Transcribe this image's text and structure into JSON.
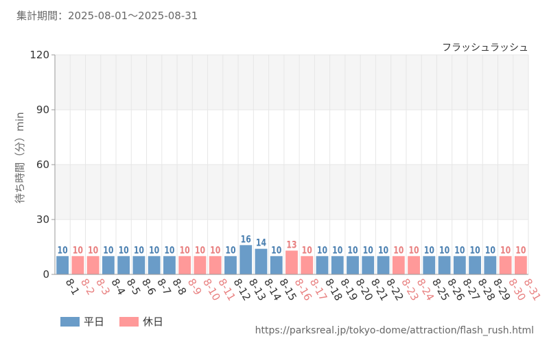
{
  "period_label": "集計期間：2025-08-01～2025-08-31",
  "source_url": "https://parksreal.jp/tokyo-dome/attraction/flash_rush.html",
  "colors": {
    "weekday": "#6a9cc8",
    "holiday": "#ff9999",
    "weekday_text": "#4a7fb0",
    "holiday_text": "#e87f7f"
  },
  "chart_data": {
    "type": "bar",
    "title": "フラッシュラッシュ",
    "ylabel": "待ち時間（分）min",
    "ylim": [
      0,
      120
    ],
    "yticks": [
      0,
      30,
      60,
      90,
      120
    ],
    "grid": true,
    "legend_position": "bottom-left",
    "categories": [
      "8-1",
      "8-2",
      "8-3",
      "8-4",
      "8-5",
      "8-6",
      "8-7",
      "8-8",
      "8-9",
      "8-10",
      "8-11",
      "8-12",
      "8-13",
      "8-14",
      "8-15",
      "8-16",
      "8-17",
      "8-18",
      "8-19",
      "8-20",
      "8-21",
      "8-22",
      "8-23",
      "8-24",
      "8-25",
      "8-26",
      "8-27",
      "8-28",
      "8-29",
      "8-30",
      "8-31"
    ],
    "values": [
      10,
      10,
      10,
      10,
      10,
      10,
      10,
      10,
      10,
      10,
      10,
      10,
      16,
      14,
      10,
      13,
      10,
      10,
      10,
      10,
      10,
      10,
      10,
      10,
      10,
      10,
      10,
      10,
      10,
      10,
      10
    ],
    "day_type": [
      "weekday",
      "holiday",
      "holiday",
      "weekday",
      "weekday",
      "weekday",
      "weekday",
      "weekday",
      "holiday",
      "holiday",
      "holiday",
      "weekday",
      "weekday",
      "weekday",
      "weekday",
      "holiday",
      "holiday",
      "weekday",
      "weekday",
      "weekday",
      "weekday",
      "weekday",
      "holiday",
      "holiday",
      "weekday",
      "weekday",
      "weekday",
      "weekday",
      "weekday",
      "holiday",
      "holiday"
    ],
    "legend": [
      {
        "key": "weekday",
        "label": "平日"
      },
      {
        "key": "holiday",
        "label": "休日"
      }
    ]
  }
}
